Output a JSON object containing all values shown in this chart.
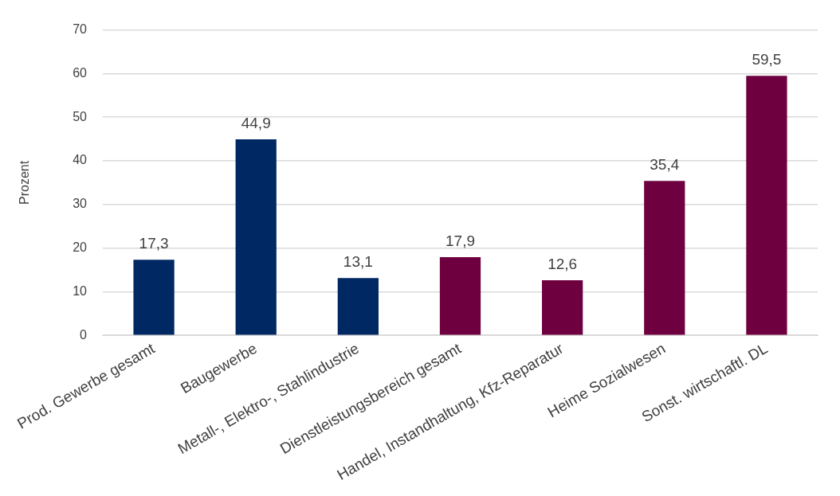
{
  "chart_data": {
    "type": "bar",
    "ylabel": "Prozent",
    "categories": [
      "Prod. Gewerbe gesamt",
      "Baugewerbe",
      "Metall-, Elektro-, Stahlindustrie",
      "Dienstleistungsbereich gesamt",
      "Handel, Instandhaltung, Kfz-Reparatur",
      "Heime Sozialwesen",
      "Sonst. wirtschaftl. DL"
    ],
    "values": [
      17.3,
      44.9,
      13.1,
      17.9,
      12.6,
      35.4,
      59.5
    ],
    "value_labels": [
      "17,3",
      "44,9",
      "13,1",
      "17,9",
      "12,6",
      "35,4",
      "59,5"
    ],
    "colors": [
      "#002863",
      "#002863",
      "#002863",
      "#6e0040",
      "#6e0040",
      "#6e0040",
      "#6e0040"
    ],
    "ylim": [
      0,
      70
    ],
    "yticks": [
      0,
      10,
      20,
      30,
      40,
      50,
      60,
      70
    ],
    "grid": "y",
    "legend": false
  }
}
